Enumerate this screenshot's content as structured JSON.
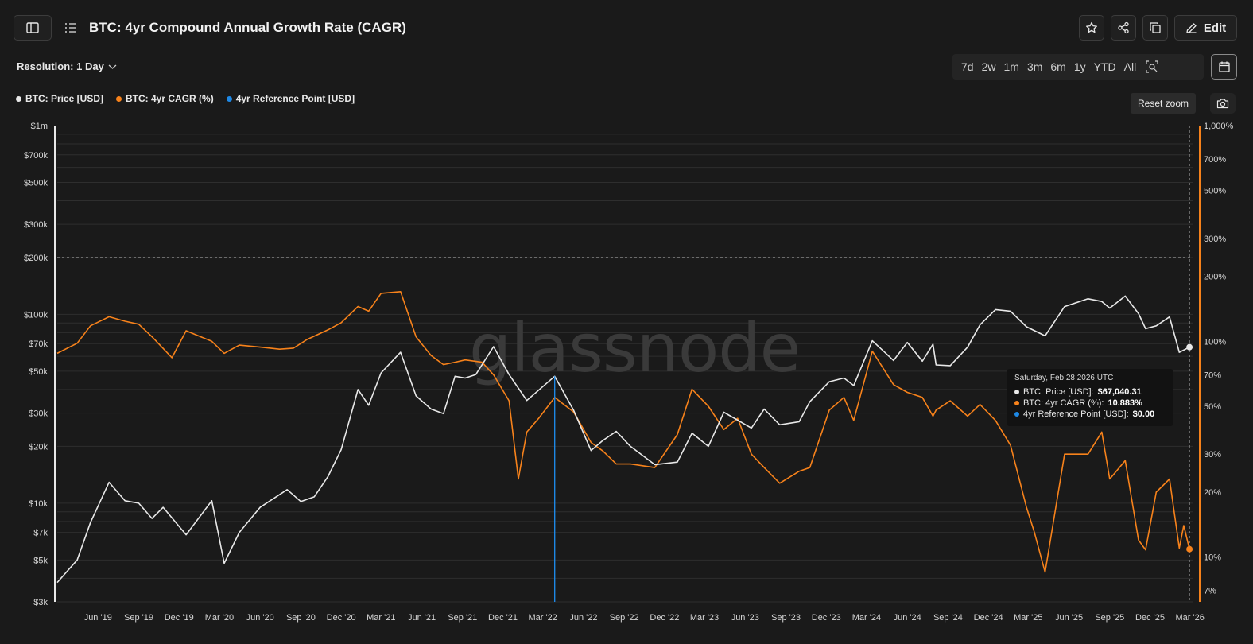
{
  "header": {
    "title": "BTC: 4yr Compound Annual Growth Rate (CAGR)",
    "edit_label": "Edit"
  },
  "controls": {
    "resolution_label": "Resolution: 1 Day",
    "ranges": [
      "7d",
      "2w",
      "1m",
      "3m",
      "6m",
      "1y",
      "YTD",
      "All"
    ],
    "reset_zoom_label": "Reset zoom"
  },
  "legend": [
    {
      "label": "BTC: Price [USD]",
      "color": "#e8e8e8"
    },
    {
      "label": "BTC: 4yr CAGR (%)",
      "color": "#f7821b"
    },
    {
      "label": "4yr Reference Point [USD]",
      "color": "#1e88e5"
    }
  ],
  "watermark": "glassnode",
  "tooltip": {
    "date": "Saturday, Feb 28 2026 UTC",
    "rows": [
      {
        "label": "BTC: Price [USD]:",
        "value": "$67,040.31",
        "color": "#e8e8e8"
      },
      {
        "label": "BTC: 4yr CAGR (%):",
        "value": "10.883%",
        "color": "#f7821b"
      },
      {
        "label": "4yr Reference Point [USD]:",
        "value": "$0.00",
        "color": "#1e88e5"
      }
    ]
  },
  "chart_data": {
    "type": "line",
    "title": "BTC: 4yr Compound Annual Growth Rate (CAGR)",
    "grid": true,
    "legend_placement": "top-left",
    "y_scale": "log",
    "y_axis_left": {
      "ticks": [
        1000000,
        700000,
        500000,
        300000,
        200000,
        100000,
        70000,
        50000,
        30000,
        20000,
        10000,
        7000,
        5000,
        3000
      ],
      "tick_labels": [
        "$1m",
        "$700k",
        "$500k",
        "$300k",
        "$200k",
        "$100k",
        "$70k",
        "$50k",
        "$30k",
        "$20k",
        "$10k",
        "$7k",
        "$5k",
        "$3k"
      ],
      "range": [
        3000,
        1000000
      ]
    },
    "y_axis_right": {
      "ticks": [
        1000,
        700,
        500,
        300,
        200,
        100,
        70,
        50,
        30,
        20,
        10,
        7
      ],
      "tick_labels": [
        "1,000%",
        "700%",
        "500%",
        "300%",
        "200%",
        "100%",
        "70%",
        "50%",
        "30%",
        "20%",
        "10%",
        "7%"
      ],
      "range": [
        6.2,
        1000
      ]
    },
    "x_axis": {
      "tick_labels": [
        "Jun '19",
        "Sep '19",
        "Dec '19",
        "Mar '20",
        "Jun '20",
        "Sep '20",
        "Dec '20",
        "Mar '21",
        "Jun '21",
        "Sep '21",
        "Dec '21",
        "Mar '22",
        "Jun '22",
        "Sep '22",
        "Dec '22",
        "Mar '23",
        "Jun '23",
        "Sep '23",
        "Dec '23",
        "Mar '24",
        "Jun '24",
        "Sep '24",
        "Dec '24",
        "Mar '25",
        "Jun '25",
        "Sep '25",
        "Dec '25",
        "Mar '26"
      ],
      "range": [
        "2019-03-01",
        "2026-03-07"
      ]
    },
    "series": [
      {
        "name": "BTC: Price [USD]",
        "axis": "left",
        "color": "#e8e8e8",
        "x": [
          "2019-03-01",
          "2019-04-15",
          "2019-05-15",
          "2019-06-26",
          "2019-08-01",
          "2019-09-01",
          "2019-10-01",
          "2019-10-26",
          "2019-12-17",
          "2020-02-13",
          "2020-03-12",
          "2020-04-15",
          "2020-06-01",
          "2020-08-01",
          "2020-09-01",
          "2020-10-01",
          "2020-11-01",
          "2020-12-01",
          "2021-01-08",
          "2021-02-01",
          "2021-03-01",
          "2021-04-14",
          "2021-05-19",
          "2021-06-22",
          "2021-07-20",
          "2021-08-15",
          "2021-09-07",
          "2021-10-01",
          "2021-11-10",
          "2021-12-15",
          "2022-01-24",
          "2022-03-28",
          "2022-05-10",
          "2022-06-18",
          "2022-07-15",
          "2022-08-14",
          "2022-09-15",
          "2022-11-09",
          "2022-12-30",
          "2023-02-01",
          "2023-03-10",
          "2023-04-14",
          "2023-06-15",
          "2023-07-14",
          "2023-08-18",
          "2023-10-01",
          "2023-10-25",
          "2023-12-08",
          "2024-01-10",
          "2024-02-01",
          "2024-03-14",
          "2024-05-01",
          "2024-06-01",
          "2024-07-05",
          "2024-07-29",
          "2024-08-05",
          "2024-09-06",
          "2024-10-15",
          "2024-11-12",
          "2024-12-17",
          "2025-01-20",
          "2025-02-25",
          "2025-04-08",
          "2025-05-22",
          "2025-07-14",
          "2025-08-14",
          "2025-09-01",
          "2025-10-06",
          "2025-11-05",
          "2025-11-21",
          "2025-12-15",
          "2026-01-14",
          "2026-02-05",
          "2026-02-28"
        ],
        "values": [
          3800,
          5000,
          7900,
          12900,
          10300,
          10000,
          8300,
          9500,
          6800,
          10300,
          4800,
          7000,
          9500,
          11800,
          10200,
          10800,
          13800,
          19200,
          40000,
          33000,
          49000,
          63000,
          37000,
          31500,
          29800,
          47000,
          46000,
          48000,
          67500,
          48000,
          35000,
          47000,
          31000,
          19000,
          21500,
          24000,
          20000,
          16000,
          16500,
          23500,
          20000,
          30300,
          25000,
          31500,
          26000,
          27000,
          34500,
          44000,
          46000,
          42000,
          72500,
          57000,
          71000,
          56500,
          69500,
          54000,
          53500,
          67000,
          88000,
          106000,
          104000,
          86000,
          77000,
          110000,
          121000,
          117000,
          108000,
          125000,
          101000,
          84000,
          87000,
          97000,
          63000,
          67040.31
        ]
      },
      {
        "name": "BTC: 4yr CAGR (%)",
        "axis": "right",
        "color": "#f7821b",
        "x": [
          "2019-03-01",
          "2019-04-15",
          "2019-05-15",
          "2019-06-26",
          "2019-08-01",
          "2019-09-01",
          "2019-10-01",
          "2019-11-15",
          "2019-12-17",
          "2020-02-13",
          "2020-03-12",
          "2020-04-15",
          "2020-06-01",
          "2020-07-15",
          "2020-08-15",
          "2020-09-15",
          "2020-11-01",
          "2020-12-01",
          "2021-01-08",
          "2021-02-01",
          "2021-03-01",
          "2021-04-14",
          "2021-05-19",
          "2021-06-22",
          "2021-07-20",
          "2021-08-15",
          "2021-09-07",
          "2021-10-15",
          "2021-11-10",
          "2021-12-15",
          "2022-01-05",
          "2022-01-24",
          "2022-02-20",
          "2022-03-28",
          "2022-05-10",
          "2022-06-18",
          "2022-07-15",
          "2022-08-14",
          "2022-09-15",
          "2022-11-09",
          "2022-12-30",
          "2023-02-01",
          "2023-03-10",
          "2023-04-14",
          "2023-05-15",
          "2023-06-15",
          "2023-07-14",
          "2023-08-18",
          "2023-10-01",
          "2023-10-25",
          "2023-12-08",
          "2024-01-10",
          "2024-02-01",
          "2024-03-14",
          "2024-05-01",
          "2024-06-01",
          "2024-07-05",
          "2024-07-29",
          "2024-08-05",
          "2024-09-06",
          "2024-10-15",
          "2024-11-12",
          "2024-12-17",
          "2025-01-20",
          "2025-02-25",
          "2025-03-15",
          "2025-04-08",
          "2025-05-22",
          "2025-07-14",
          "2025-08-14",
          "2025-09-01",
          "2025-10-06",
          "2025-11-05",
          "2025-11-21",
          "2025-12-15",
          "2026-01-14",
          "2026-02-05",
          "2026-02-15",
          "2026-02-28"
        ],
        "values": [
          88,
          98,
          118,
          130,
          124,
          120,
          105,
          84,
          112,
          100,
          88,
          96,
          94,
          92,
          93,
          102,
          113,
          122,
          145,
          138,
          167,
          170,
          105,
          86,
          78,
          80,
          82,
          80,
          70,
          53,
          23,
          38,
          44,
          55,
          47,
          34,
          31,
          27,
          27,
          26,
          37,
          60,
          50,
          39,
          44,
          30,
          26,
          22,
          25,
          26,
          48,
          55,
          43,
          90,
          63,
          58,
          55,
          45,
          48,
          53,
          45,
          51,
          43,
          33,
          17,
          13,
          8.5,
          30,
          30,
          38,
          23,
          28,
          12,
          10.8,
          20,
          23,
          11,
          14,
          10.883
        ]
      },
      {
        "name": "4yr Reference Point [USD]",
        "axis": "left",
        "color": "#1e88e5",
        "x": [
          "2022-03-28"
        ],
        "values": [
          47000
        ]
      }
    ]
  }
}
